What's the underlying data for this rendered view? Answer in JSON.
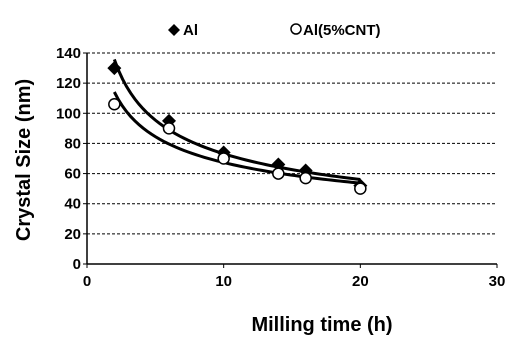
{
  "chart_data": {
    "type": "scatter",
    "title": "",
    "xlabel": "Milling time (h)",
    "ylabel": "Crystal Size (nm)",
    "xlim": [
      0,
      30
    ],
    "ylim": [
      0,
      140
    ],
    "xticks": [
      0,
      10,
      20,
      30
    ],
    "yticks": [
      0,
      20,
      40,
      60,
      80,
      100,
      120,
      140
    ],
    "grid": "horizontal dashed",
    "legend_position": "top",
    "series": [
      {
        "name": "Al",
        "marker": "filled-diamond",
        "x": [
          2,
          6,
          10,
          14,
          16,
          20
        ],
        "y": [
          130,
          95,
          74,
          66,
          62,
          52
        ],
        "trend": "power"
      },
      {
        "name": "Al(5%CNT)",
        "marker": "open-circle",
        "x": [
          2,
          6,
          10,
          14,
          16,
          20
        ],
        "y": [
          106,
          90,
          70,
          60,
          57,
          50
        ],
        "trend": "power"
      }
    ]
  }
}
